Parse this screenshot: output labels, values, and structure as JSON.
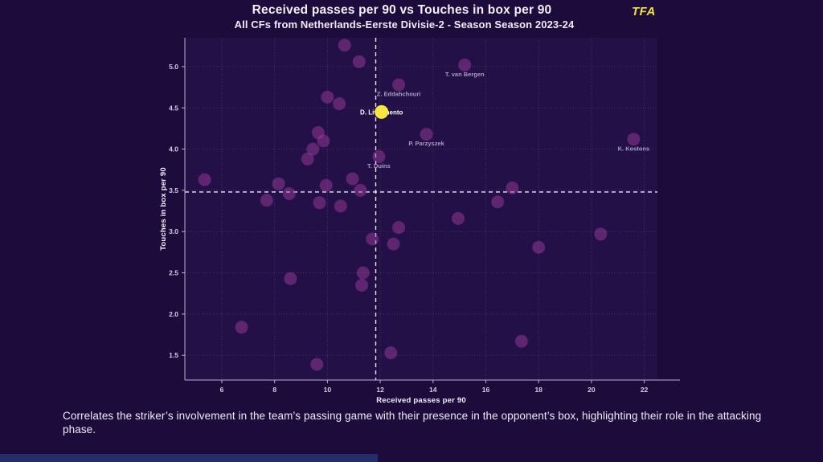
{
  "header": {
    "logo": "TFA"
  },
  "caption": {
    "text": "Correlates the striker’s involvement in the team’s passing game with their presence in the opponent’s box, highlighting their role in the attacking phase."
  },
  "colors": {
    "background": "#1d0b3b",
    "plot_background": "#221046",
    "point": "#9c3a9c",
    "highlight_point": "#f5e642",
    "grid": "#6b5b93",
    "spine": "#b9b1cf",
    "mean_line": "#eceaf4",
    "text": "#f2effa",
    "tick_text": "#d6d0e6",
    "muted_label": "#a89ec4",
    "highlight_label": "#ffffff",
    "logo": "#f2e23a",
    "accent_bar": "#232e6b"
  },
  "chart_data": {
    "type": "scatter",
    "title": "Received passes per 90 vs Touches in box per 90",
    "subtitle": "All CFs from Netherlands-Eerste Divisie-2 - Season Season 2023-24",
    "xlabel": "Received passes per 90",
    "ylabel": "Touches in box per 90",
    "xlim": [
      4.6,
      22.5
    ],
    "ylim": [
      1.2,
      5.35
    ],
    "xticks": [
      6,
      8,
      10,
      12,
      14,
      16,
      18,
      20,
      22
    ],
    "yticks": [
      1.5,
      2.0,
      2.5,
      3.0,
      3.5,
      4.0,
      4.5,
      5.0
    ],
    "mean_x": 11.83,
    "mean_y": 3.48,
    "grid": true,
    "legend": "none",
    "points": [
      {
        "x": 10.0,
        "y": 4.63
      },
      {
        "x": 10.45,
        "y": 4.55
      },
      {
        "x": 10.65,
        "y": 5.26
      },
      {
        "x": 11.2,
        "y": 5.06
      },
      {
        "x": 15.2,
        "y": 5.02,
        "label": "T. van Bergen"
      },
      {
        "x": 12.7,
        "y": 4.78,
        "label": "Z. Eddahchouri"
      },
      {
        "x": 12.05,
        "y": 4.45,
        "label": "D. Livramento",
        "highlight": true
      },
      {
        "x": 13.75,
        "y": 4.18,
        "label": "P. Parzyszek"
      },
      {
        "x": 21.6,
        "y": 4.12,
        "label": "K. Kostons"
      },
      {
        "x": 9.65,
        "y": 4.2
      },
      {
        "x": 9.85,
        "y": 4.1
      },
      {
        "x": 9.45,
        "y": 4.0
      },
      {
        "x": 9.25,
        "y": 3.88
      },
      {
        "x": 11.95,
        "y": 3.91,
        "label": "T. Duins"
      },
      {
        "x": 5.35,
        "y": 3.63
      },
      {
        "x": 8.15,
        "y": 3.58
      },
      {
        "x": 8.55,
        "y": 3.46
      },
      {
        "x": 7.7,
        "y": 3.38
      },
      {
        "x": 9.95,
        "y": 3.56
      },
      {
        "x": 10.95,
        "y": 3.64
      },
      {
        "x": 11.25,
        "y": 3.5
      },
      {
        "x": 9.7,
        "y": 3.35
      },
      {
        "x": 10.5,
        "y": 3.31
      },
      {
        "x": 17.0,
        "y": 3.53
      },
      {
        "x": 16.45,
        "y": 3.36
      },
      {
        "x": 14.95,
        "y": 3.16
      },
      {
        "x": 12.7,
        "y": 3.05
      },
      {
        "x": 11.7,
        "y": 2.91
      },
      {
        "x": 12.5,
        "y": 2.85
      },
      {
        "x": 20.35,
        "y": 2.97
      },
      {
        "x": 18.0,
        "y": 2.81
      },
      {
        "x": 11.35,
        "y": 2.5
      },
      {
        "x": 11.3,
        "y": 2.35
      },
      {
        "x": 8.6,
        "y": 2.43
      },
      {
        "x": 6.75,
        "y": 1.84
      },
      {
        "x": 9.6,
        "y": 1.39
      },
      {
        "x": 12.4,
        "y": 1.53
      },
      {
        "x": 17.35,
        "y": 1.67
      }
    ]
  }
}
